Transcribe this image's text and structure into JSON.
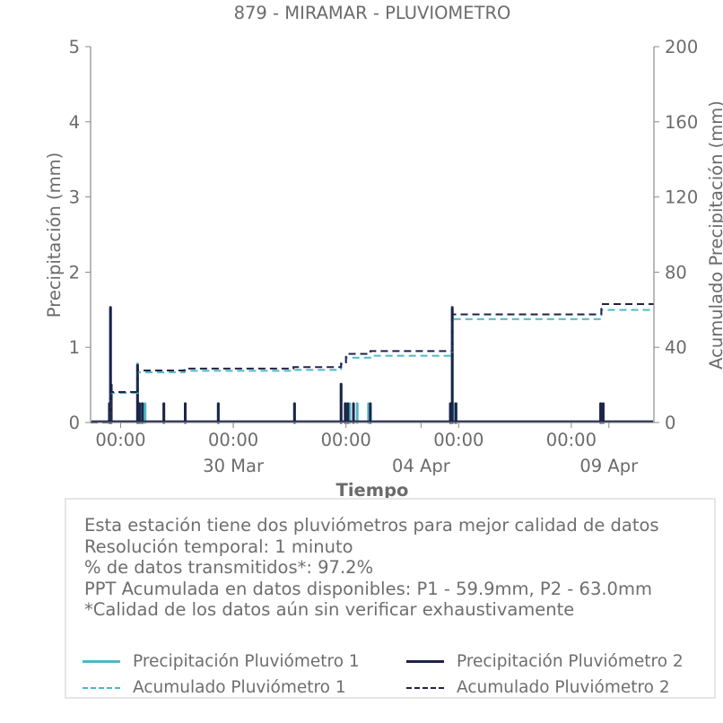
{
  "colors": {
    "p1": "#4eb8c6",
    "p2": "#1e2348",
    "axis": "#8a8a8a",
    "text": "#6b6b6b"
  },
  "chart_data": {
    "type": "line",
    "title": "879 - MIRAMAR - PLUVIOMETRO",
    "xlabel": "Tiempo",
    "ylabel": "Precipitación (mm)",
    "y2label": "Acumulado Precipitación (mm)",
    "ylim": [
      0,
      5
    ],
    "y2lim": [
      0,
      200
    ],
    "yticks": [
      "0",
      "1",
      "2",
      "3",
      "4",
      "5"
    ],
    "y2ticks": [
      "0",
      "40",
      "80",
      "120",
      "160",
      "200"
    ],
    "x_unit": "days since 2024-03-27 00:00 (axis starts ~ -0.8)",
    "xlim": [
      -0.8,
      14.2
    ],
    "xticks_major": [
      {
        "x": 0,
        "label": "00:00"
      },
      {
        "x": 3,
        "label": "00:00"
      },
      {
        "x": 6,
        "label": "00:00"
      },
      {
        "x": 9,
        "label": "00:00"
      },
      {
        "x": 12,
        "label": "00:00"
      }
    ],
    "xticks_date": [
      {
        "x": 3,
        "label": "30 Mar"
      },
      {
        "x": 8,
        "label": "04 Apr"
      },
      {
        "x": 13,
        "label": "09 Apr"
      }
    ],
    "grid": false,
    "legend": "bottom",
    "series": [
      {
        "name": "Precipitación Pluviómetro 1",
        "axis": "left",
        "style": "solid",
        "color_key": "p1",
        "points": [
          [
            -0.28,
            0.25
          ],
          [
            -0.27,
            1.52
          ],
          [
            0.45,
            0.78
          ],
          [
            0.55,
            0.25
          ],
          [
            0.65,
            0.25
          ],
          [
            1.15,
            0.25
          ],
          [
            1.72,
            0.25
          ],
          [
            2.6,
            0.25
          ],
          [
            4.63,
            0.25
          ],
          [
            5.87,
            0.5
          ],
          [
            6.0,
            0.25
          ],
          [
            6.1,
            0.25
          ],
          [
            6.3,
            0.25
          ],
          [
            6.6,
            0.25
          ],
          [
            8.78,
            0.25
          ],
          [
            8.83,
            1.5
          ],
          [
            8.9,
            0.25
          ],
          [
            12.8,
            0.25
          ]
        ]
      },
      {
        "name": "Precipitación Pluviómetro 2",
        "axis": "left",
        "style": "solid",
        "color_key": "p2",
        "points": [
          [
            -0.3,
            0.25
          ],
          [
            -0.27,
            1.53
          ],
          [
            -0.25,
            0.5
          ],
          [
            0.45,
            0.76
          ],
          [
            0.5,
            0.25
          ],
          [
            0.58,
            0.25
          ],
          [
            1.15,
            0.25
          ],
          [
            1.72,
            0.25
          ],
          [
            2.6,
            0.25
          ],
          [
            4.63,
            0.25
          ],
          [
            5.87,
            0.51
          ],
          [
            5.98,
            0.25
          ],
          [
            6.05,
            0.25
          ],
          [
            6.2,
            0.25
          ],
          [
            6.65,
            0.25
          ],
          [
            8.78,
            0.25
          ],
          [
            8.83,
            1.53
          ],
          [
            8.93,
            0.25
          ],
          [
            12.78,
            0.25
          ],
          [
            12.85,
            0.25
          ]
        ]
      },
      {
        "name": "Acumulado Pluviómetro 1",
        "axis": "right",
        "style": "dashed",
        "color_key": "p1",
        "steps": [
          [
            -0.8,
            0
          ],
          [
            -0.27,
            15.7
          ],
          [
            0.45,
            26.7
          ],
          [
            1.7,
            27.5
          ],
          [
            4.6,
            28.0
          ],
          [
            5.87,
            31.0
          ],
          [
            6.0,
            34.5
          ],
          [
            6.65,
            35.5
          ],
          [
            8.83,
            55.0
          ],
          [
            12.8,
            59.9
          ],
          [
            14.2,
            59.9
          ]
        ]
      },
      {
        "name": "Acumulado Pluviómetro 2",
        "axis": "right",
        "style": "dashed",
        "color_key": "p2",
        "steps": [
          [
            -0.8,
            0
          ],
          [
            -0.27,
            16.2
          ],
          [
            0.45,
            27.7
          ],
          [
            1.7,
            28.7
          ],
          [
            4.6,
            29.5
          ],
          [
            5.87,
            32.0
          ],
          [
            6.0,
            36.5
          ],
          [
            6.65,
            38.0
          ],
          [
            8.83,
            57.5
          ],
          [
            12.8,
            63.0
          ],
          [
            14.2,
            63.0
          ]
        ]
      }
    ]
  },
  "info": {
    "lines": [
      "Esta estación tiene dos pluviómetros para mejor calidad de datos",
      "Resolución temporal: 1 minuto",
      "% de datos transmitidos*: 97.2%",
      "PPT Acumulada en datos disponibles: P1 - 59.9mm, P2 - 63.0mm",
      "*Calidad de los datos aún sin verificar exhaustivamente"
    ]
  },
  "legend": {
    "items": [
      {
        "label": "Precipitación Pluviómetro 1",
        "style": "solid",
        "color_key": "p1"
      },
      {
        "label": "Precipitación Pluviómetro 2",
        "style": "solid",
        "color_key": "p2"
      },
      {
        "label": "Acumulado Pluviómetro 1",
        "style": "dashed",
        "color_key": "p1"
      },
      {
        "label": "Acumulado Pluviómetro 2",
        "style": "dashed",
        "color_key": "p2"
      }
    ]
  }
}
